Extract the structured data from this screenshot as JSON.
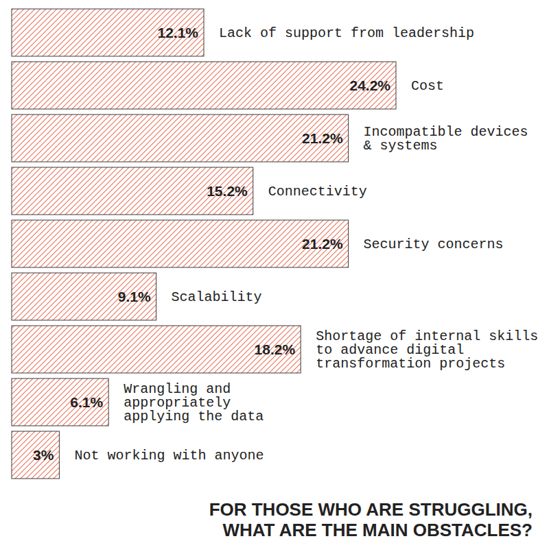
{
  "chart_data": {
    "type": "bar",
    "orientation": "horizontal",
    "title": "FOR THOSE WHO ARE STRUGGLING,\nWHAT ARE THE MAIN OBSTACLES?",
    "categories": [
      "Lack of support from leadership",
      "Cost",
      "Incompatible devices\n& systems",
      "Connectivity",
      "Security concerns",
      "Scalability",
      "Shortage of internal skills\nto advance digital\ntransformation projects",
      "Wrangling and\nappropriately\napplying the data",
      "Not working with anyone"
    ],
    "values": [
      12.1,
      24.2,
      21.2,
      15.2,
      21.2,
      9.1,
      18.2,
      6.1,
      3
    ],
    "value_labels": [
      "12.1%",
      "24.2%",
      "21.2%",
      "15.2%",
      "21.2%",
      "9.1%",
      "18.2%",
      "6.1%",
      "3%"
    ],
    "data_labels": true,
    "color": "#e8735a",
    "xlim": [
      0,
      24.2
    ],
    "tick_labels": false,
    "grid": false
  }
}
